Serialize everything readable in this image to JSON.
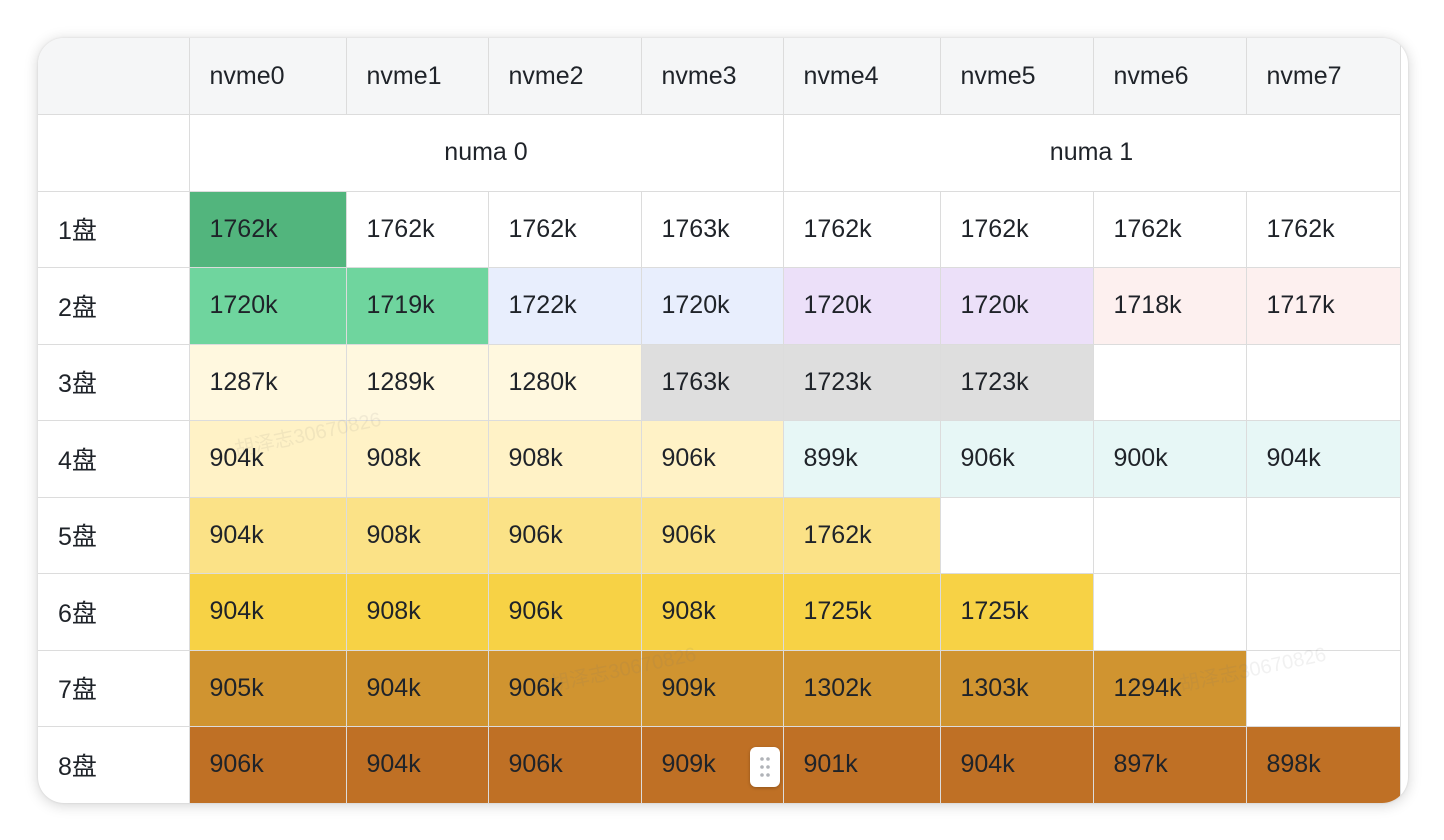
{
  "table": {
    "headers": [
      "",
      "nvme0",
      "nvme1",
      "nvme2",
      "nvme3",
      "nvme4",
      "nvme5",
      "nvme6",
      "nvme7"
    ],
    "numa": [
      {
        "label": "numa 0",
        "span": 4
      },
      {
        "label": "numa 1",
        "span": 4
      }
    ],
    "rows": [
      {
        "label": "1盘",
        "cells": [
          {
            "value": "1762k",
            "color": "#52b57d"
          },
          {
            "value": "1762k",
            "color": ""
          },
          {
            "value": "1762k",
            "color": ""
          },
          {
            "value": "1763k",
            "color": ""
          },
          {
            "value": "1762k",
            "color": ""
          },
          {
            "value": "1762k",
            "color": ""
          },
          {
            "value": "1762k",
            "color": ""
          },
          {
            "value": "1762k",
            "color": ""
          }
        ]
      },
      {
        "label": "2盘",
        "cells": [
          {
            "value": "1720k",
            "color": "#6fd59e"
          },
          {
            "value": "1719k",
            "color": "#6fd59e"
          },
          {
            "value": "1722k",
            "color": "#e8eefd"
          },
          {
            "value": "1720k",
            "color": "#e8eefd"
          },
          {
            "value": "1720k",
            "color": "#ece0f9"
          },
          {
            "value": "1720k",
            "color": "#ece0f9"
          },
          {
            "value": "1718k",
            "color": "#fdf0ef"
          },
          {
            "value": "1717k",
            "color": "#fdf0ef"
          }
        ]
      },
      {
        "label": "3盘",
        "cells": [
          {
            "value": "1287k",
            "color": "#fff8df"
          },
          {
            "value": "1289k",
            "color": "#fff8df"
          },
          {
            "value": "1280k",
            "color": "#fff8df"
          },
          {
            "value": "1763k",
            "color": "#dedede"
          },
          {
            "value": "1723k",
            "color": "#dedede"
          },
          {
            "value": "1723k",
            "color": "#dedede"
          },
          {
            "value": "",
            "color": ""
          },
          {
            "value": "",
            "color": ""
          }
        ]
      },
      {
        "label": "4盘",
        "cells": [
          {
            "value": "904k",
            "color": "#fff2c6"
          },
          {
            "value": "908k",
            "color": "#fff2c6"
          },
          {
            "value": "908k",
            "color": "#fff2c6"
          },
          {
            "value": "906k",
            "color": "#fff2c6"
          },
          {
            "value": "899k",
            "color": "#e7f7f6"
          },
          {
            "value": "906k",
            "color": "#e7f7f6"
          },
          {
            "value": "900k",
            "color": "#e7f7f6"
          },
          {
            "value": "904k",
            "color": "#e7f7f6"
          }
        ]
      },
      {
        "label": "5盘",
        "cells": [
          {
            "value": "904k",
            "color": "#fbe287"
          },
          {
            "value": "908k",
            "color": "#fbe287"
          },
          {
            "value": "906k",
            "color": "#fbe287"
          },
          {
            "value": "906k",
            "color": "#fbe287"
          },
          {
            "value": "1762k",
            "color": "#fbe287"
          },
          {
            "value": "",
            "color": ""
          },
          {
            "value": "",
            "color": ""
          },
          {
            "value": "",
            "color": ""
          }
        ]
      },
      {
        "label": "6盘",
        "cells": [
          {
            "value": "904k",
            "color": "#f7d245"
          },
          {
            "value": "908k",
            "color": "#f7d245"
          },
          {
            "value": "906k",
            "color": "#f7d245"
          },
          {
            "value": "908k",
            "color": "#f7d245"
          },
          {
            "value": "1725k",
            "color": "#f7d245"
          },
          {
            "value": "1725k",
            "color": "#f7d245"
          },
          {
            "value": "",
            "color": ""
          },
          {
            "value": "",
            "color": ""
          }
        ]
      },
      {
        "label": "7盘",
        "cells": [
          {
            "value": "905k",
            "color": "#d09430"
          },
          {
            "value": "904k",
            "color": "#d09430"
          },
          {
            "value": "906k",
            "color": "#d09430"
          },
          {
            "value": "909k",
            "color": "#d09430"
          },
          {
            "value": "1302k",
            "color": "#d09430"
          },
          {
            "value": "1303k",
            "color": "#d09430"
          },
          {
            "value": "1294k",
            "color": "#d09430"
          },
          {
            "value": "",
            "color": ""
          }
        ]
      },
      {
        "label": "8盘",
        "cells": [
          {
            "value": "906k",
            "color": "#bf7025"
          },
          {
            "value": "904k",
            "color": "#bf7025"
          },
          {
            "value": "906k",
            "color": "#bf7025"
          },
          {
            "value": "909k",
            "color": "#bf7025"
          },
          {
            "value": "901k",
            "color": "#bf7025"
          },
          {
            "value": "904k",
            "color": "#bf7025"
          },
          {
            "value": "897k",
            "color": "#bf7025"
          },
          {
            "value": "898k",
            "color": "#bf7025"
          }
        ]
      }
    ]
  },
  "watermark": "胡泽志30670826",
  "drag_handle_icon": "drag-handle-icon"
}
